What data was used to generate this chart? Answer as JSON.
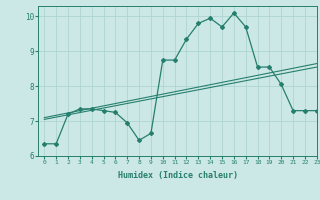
{
  "xlabel": "Humidex (Indice chaleur)",
  "ylabel": "",
  "xlim": [
    -0.5,
    23
  ],
  "ylim": [
    6,
    10.3
  ],
  "yticks": [
    6,
    7,
    8,
    9,
    10
  ],
  "xticks": [
    0,
    1,
    2,
    3,
    4,
    5,
    6,
    7,
    8,
    9,
    10,
    11,
    12,
    13,
    14,
    15,
    16,
    17,
    18,
    19,
    20,
    21,
    22,
    23
  ],
  "line_color": "#267f6e",
  "bg_color": "#cce8e6",
  "grid_color": "#aed4d1",
  "main_line": {
    "x": [
      0,
      1,
      2,
      3,
      4,
      5,
      6,
      7,
      8,
      9,
      10,
      11,
      12,
      13,
      14,
      15,
      16,
      17,
      18,
      19,
      20,
      21,
      22,
      23
    ],
    "y": [
      6.35,
      6.35,
      7.2,
      7.35,
      7.35,
      7.3,
      7.25,
      6.95,
      6.45,
      6.65,
      8.75,
      8.75,
      9.35,
      9.8,
      9.95,
      9.7,
      10.1,
      9.7,
      8.55,
      8.55,
      8.05,
      7.3,
      7.3,
      7.3
    ]
  },
  "linear_line1": {
    "x": [
      0,
      23
    ],
    "y": [
      7.05,
      8.55
    ]
  },
  "linear_line2": {
    "x": [
      0,
      23
    ],
    "y": [
      7.1,
      8.65
    ]
  }
}
